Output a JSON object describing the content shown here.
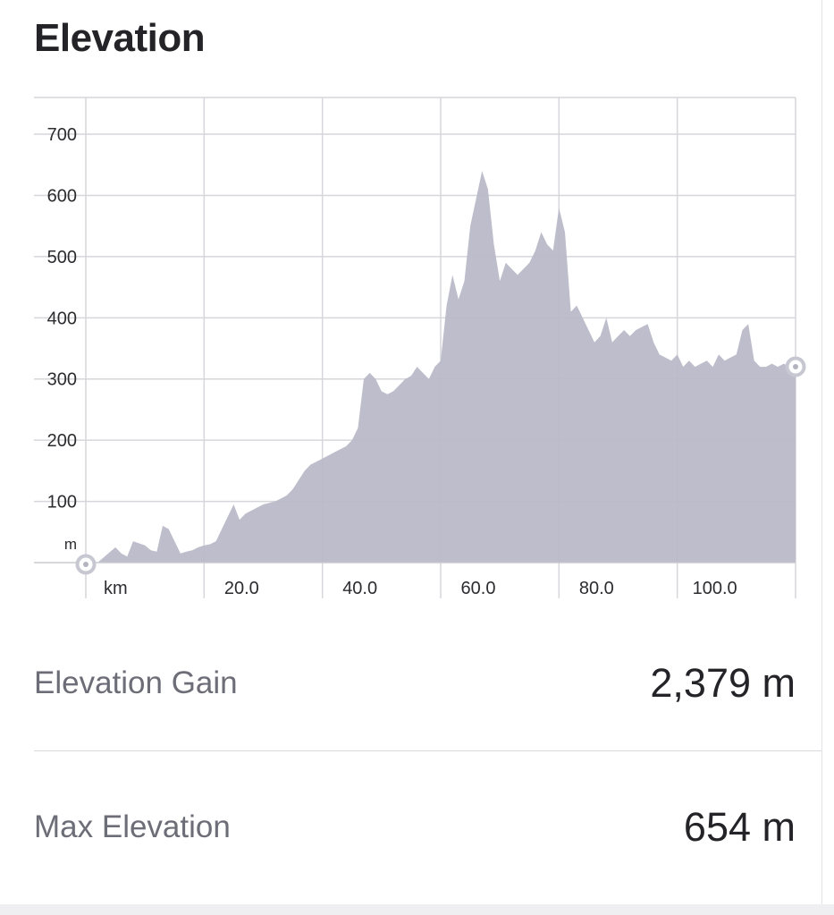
{
  "section": {
    "title": "Elevation"
  },
  "chart_data": {
    "type": "area",
    "xlabel": "km",
    "ylabel": "m",
    "x_ticks": [
      "20.0",
      "40.0",
      "60.0",
      "80.0",
      "100.0"
    ],
    "y_ticks": [
      "100",
      "200",
      "300",
      "400",
      "500",
      "600",
      "700"
    ],
    "xlim": [
      0,
      120
    ],
    "ylim": [
      0,
      760
    ],
    "grid": true,
    "fill_color": "#b9b9c8",
    "start_marker": {
      "x": 0,
      "y": 0
    },
    "end_marker": {
      "x": 120,
      "y": 320
    },
    "series": [
      {
        "x": [
          0,
          2,
          5,
          6,
          7,
          8,
          10,
          11,
          12,
          13,
          14,
          15,
          16,
          17,
          18,
          19,
          20,
          21,
          22,
          23,
          25,
          26,
          27,
          29,
          30,
          32,
          33,
          34,
          35,
          36,
          37,
          38,
          40,
          41,
          42,
          43,
          44,
          45,
          46,
          47,
          48,
          49,
          50,
          51,
          52,
          53,
          54,
          55,
          56,
          57,
          58,
          59,
          60,
          61,
          62,
          63,
          64,
          65,
          67,
          68,
          69,
          70,
          71,
          72,
          73,
          74,
          75,
          76,
          77,
          78,
          79,
          80,
          81,
          82,
          83,
          84,
          85,
          86,
          87,
          88,
          89,
          90,
          91,
          92,
          93,
          94,
          95,
          96,
          97,
          98,
          99,
          100,
          101,
          102,
          103,
          104,
          105,
          106,
          107,
          108,
          109,
          110,
          111,
          112,
          113,
          114,
          115,
          116,
          117,
          118,
          119,
          120
        ],
        "y": [
          0,
          0,
          25,
          15,
          10,
          35,
          28,
          20,
          18,
          60,
          55,
          35,
          15,
          18,
          20,
          25,
          28,
          30,
          35,
          55,
          95,
          70,
          80,
          90,
          95,
          100,
          105,
          110,
          120,
          135,
          150,
          160,
          170,
          175,
          180,
          185,
          190,
          200,
          220,
          300,
          310,
          300,
          280,
          275,
          280,
          290,
          300,
          305,
          320,
          310,
          300,
          320,
          330,
          420,
          470,
          430,
          460,
          550,
          640,
          610,
          520,
          460,
          490,
          480,
          470,
          480,
          490,
          510,
          540,
          520,
          510,
          580,
          540,
          410,
          420,
          400,
          380,
          360,
          370,
          400,
          360,
          370,
          380,
          370,
          380,
          385,
          390,
          360,
          340,
          335,
          330,
          340,
          320,
          330,
          320,
          325,
          330,
          320,
          340,
          330,
          335,
          340,
          380,
          390,
          330,
          320,
          320,
          325,
          320,
          325,
          320,
          320
        ]
      }
    ]
  },
  "stats": {
    "elevation_gain": {
      "label": "Elevation Gain",
      "value": "2,379 m"
    },
    "max_elevation": {
      "label": "Max Elevation",
      "value": "654 m"
    }
  }
}
